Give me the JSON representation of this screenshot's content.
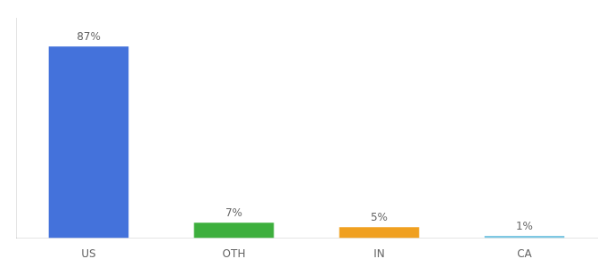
{
  "chart_data": {
    "type": "bar",
    "categories": [
      "US",
      "OTH",
      "IN",
      "CA"
    ],
    "values": [
      87,
      7,
      5,
      1
    ],
    "value_labels": [
      "87%",
      "7%",
      "5%",
      "1%"
    ],
    "colors": [
      "#4472db",
      "#3daf3d",
      "#f0a020",
      "#7ec8e3"
    ],
    "ylim": [
      0,
      100
    ],
    "grid": false,
    "data_labels": true,
    "tick_labels": "x"
  }
}
